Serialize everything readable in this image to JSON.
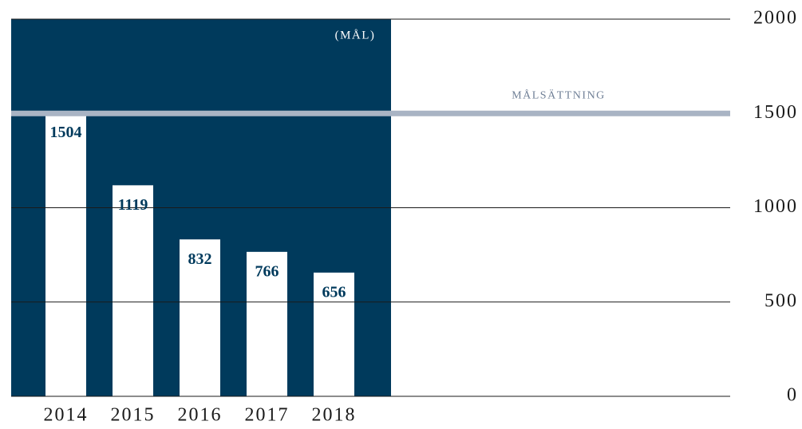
{
  "chart_data": {
    "type": "bar",
    "annotation": "(MÅL)",
    "categories": [
      "2014",
      "2015",
      "2016",
      "2017",
      "2018"
    ],
    "values": [
      1504,
      1119,
      832,
      766,
      656
    ],
    "color": "#ffffff",
    "panel_color": "#003a5c",
    "label_color": "#003a5c",
    "ylim": [
      0,
      2000
    ],
    "yticks": [
      0,
      500,
      1000,
      1500,
      2000
    ],
    "grid": true,
    "target": {
      "value": 1500,
      "label": "MÅLSÄTTNING",
      "color": "#a9b4c4"
    }
  }
}
